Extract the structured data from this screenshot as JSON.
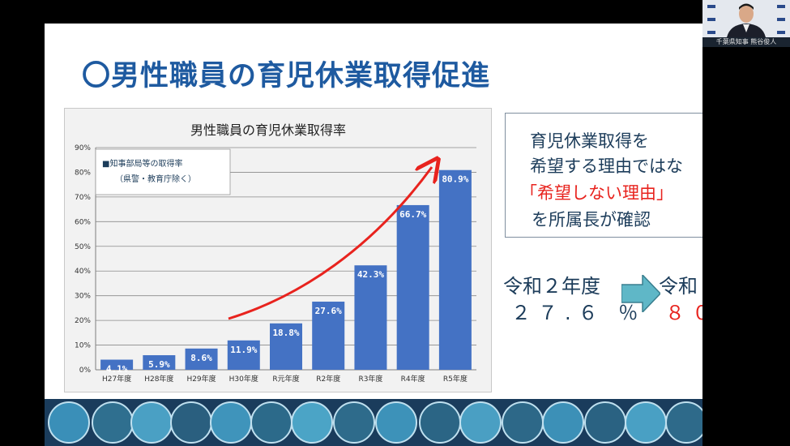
{
  "slide": {
    "title": "〇男性職員の育児休業取得促進"
  },
  "chart_data": {
    "type": "bar",
    "title": "男性職員の育児休業取得率",
    "categories": [
      "H27年度",
      "H28年度",
      "H29年度",
      "H30年度",
      "R元年度",
      "R2年度",
      "R3年度",
      "R4年度",
      "R5年度"
    ],
    "values": [
      4.1,
      5.9,
      8.6,
      11.9,
      18.8,
      27.6,
      42.3,
      66.7,
      80.9
    ],
    "data_labels": [
      "4.1%",
      "5.9%",
      "8.6%",
      "11.9%",
      "18.8%",
      "27.6%",
      "42.3%",
      "66.7%",
      "80.9%"
    ],
    "yticks": [
      "0%",
      "10%",
      "20%",
      "30%",
      "40%",
      "50%",
      "60%",
      "70%",
      "80%",
      "90%"
    ],
    "ylim": [
      0,
      90
    ],
    "grid": true,
    "legend": {
      "position": "top-left",
      "line1": "■知事部局等の取得率",
      "line2": "（県警・教育庁除く）"
    },
    "bar_color": "#4472c4",
    "annotation": "red upward arrow from H30 to R4"
  },
  "note": {
    "line1": "育児休業取得を",
    "line2": "希望する理由ではな",
    "line3": "「希望しない理由」",
    "line4": "を所属長が確認",
    "highlight_color": "#e8231e"
  },
  "comparison": {
    "left_label": "令和２年度",
    "left_value": "２７.６ ％",
    "right_label": "令和",
    "right_value": "８０"
  },
  "camera": {
    "caption": "千葉県知事 熊谷俊人"
  }
}
